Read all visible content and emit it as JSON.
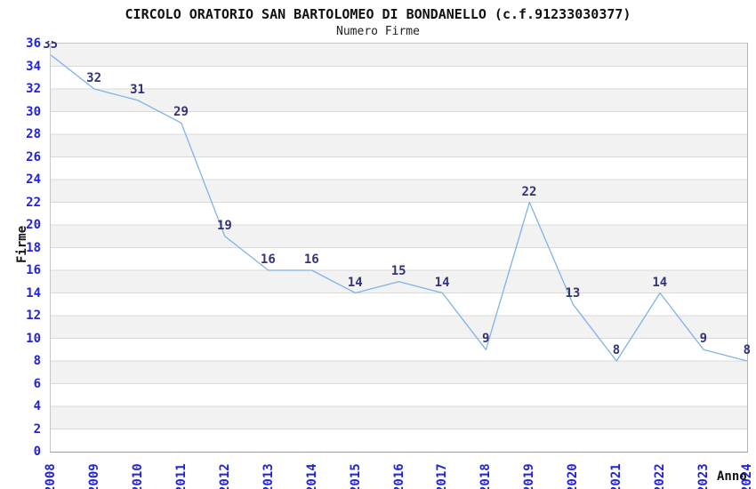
{
  "chart_data": {
    "type": "line",
    "title": "CIRCOLO ORATORIO SAN BARTOLOMEO DI BONDANELLO (c.f.91233030377)",
    "subtitle": "Numero Firme",
    "xlabel": "Anno",
    "ylabel": "Firme",
    "categories": [
      "2008",
      "2009",
      "2010",
      "2011",
      "2012",
      "2013",
      "2014",
      "2015",
      "2016",
      "2017",
      "2018",
      "2019",
      "2020",
      "2021",
      "2022",
      "2023",
      "2024"
    ],
    "values": [
      35,
      32,
      31,
      29,
      19,
      16,
      16,
      14,
      15,
      14,
      9,
      22,
      13,
      8,
      14,
      9,
      8
    ],
    "ylim": [
      0,
      36
    ],
    "ytick_step": 2,
    "grid": "horizontal-only",
    "legend": "none",
    "colors": {
      "line": "#7fb2e8",
      "grid_line": "#d9d9d9",
      "band_fill": "#f2f2f2",
      "band_alt_fill": "#ffffff",
      "tick_label": "#2222dd",
      "data_label": "#333377",
      "title_text": "#111111"
    }
  }
}
